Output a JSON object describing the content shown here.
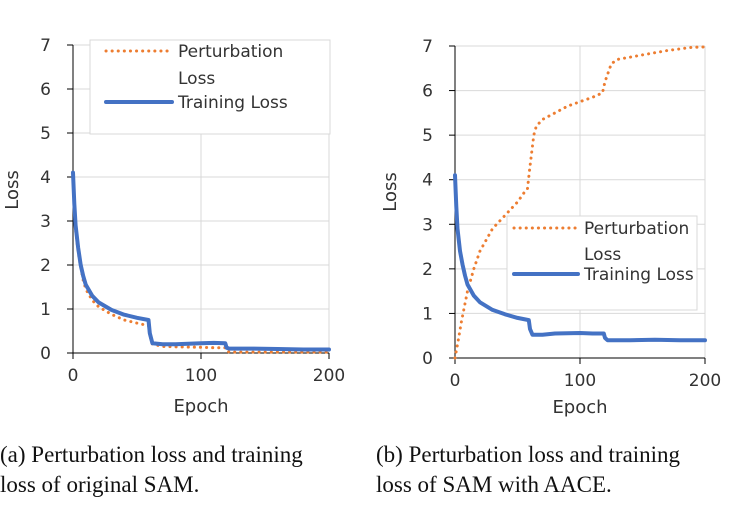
{
  "chart_data": [
    {
      "type": "line",
      "xlabel": "Epoch",
      "ylabel": "Loss",
      "xlim": [
        0,
        200
      ],
      "ylim": [
        0,
        7
      ],
      "xticks": [
        0,
        100,
        200
      ],
      "yticks": [
        0,
        1,
        2,
        3,
        4,
        5,
        6,
        7
      ],
      "grid": "on",
      "legend_position": "top-right",
      "colors": {
        "perturbation": "#ed7d31",
        "training": "#4472c4"
      },
      "legend": {
        "perturbation_lines": [
          "Perturbation",
          "Loss"
        ],
        "training_lines": [
          "Training Loss"
        ]
      },
      "series": [
        {
          "name": "Perturbation Loss",
          "style": "dotted",
          "x": [
            0,
            1,
            2,
            4,
            6,
            8,
            10,
            15,
            20,
            30,
            40,
            50,
            59,
            60,
            62,
            70,
            80,
            100,
            110,
            119,
            120,
            122,
            140,
            160,
            180,
            200
          ],
          "y": [
            4.0,
            3.3,
            2.8,
            2.3,
            1.95,
            1.65,
            1.45,
            1.2,
            1.05,
            0.88,
            0.75,
            0.68,
            0.62,
            0.4,
            0.2,
            0.15,
            0.14,
            0.13,
            0.12,
            0.12,
            0.05,
            0.02,
            0.02,
            0.02,
            0.02,
            0.02
          ]
        },
        {
          "name": "Training Loss",
          "style": "solid",
          "x": [
            0,
            1,
            2,
            4,
            6,
            8,
            10,
            15,
            20,
            30,
            40,
            50,
            59,
            60,
            62,
            70,
            80,
            100,
            110,
            119,
            120,
            122,
            140,
            160,
            180,
            200
          ],
          "y": [
            4.1,
            3.4,
            2.9,
            2.4,
            2.0,
            1.75,
            1.55,
            1.3,
            1.15,
            0.98,
            0.87,
            0.8,
            0.75,
            0.45,
            0.22,
            0.2,
            0.2,
            0.22,
            0.23,
            0.22,
            0.12,
            0.1,
            0.1,
            0.09,
            0.08,
            0.08
          ]
        }
      ]
    },
    {
      "type": "line",
      "xlabel": "Epoch",
      "ylabel": "Loss",
      "xlim": [
        0,
        200
      ],
      "ylim": [
        0,
        7
      ],
      "xticks": [
        0,
        100,
        200
      ],
      "yticks": [
        0,
        1,
        2,
        3,
        4,
        5,
        6,
        7
      ],
      "grid": "on",
      "legend_position": "center-right",
      "colors": {
        "perturbation": "#ed7d31",
        "training": "#4472c4"
      },
      "legend": {
        "perturbation_lines": [
          "Perturbation",
          "Loss"
        ],
        "training_lines": [
          "Training Loss"
        ]
      },
      "series": [
        {
          "name": "Perturbation Loss",
          "style": "dotted",
          "x": [
            0,
            2,
            5,
            10,
            15,
            20,
            30,
            40,
            50,
            55,
            58,
            60,
            63,
            65,
            70,
            80,
            90,
            100,
            110,
            118,
            120,
            125,
            130,
            150,
            170,
            190,
            200
          ],
          "y": [
            0.0,
            0.3,
            0.8,
            1.5,
            2.0,
            2.4,
            2.9,
            3.2,
            3.5,
            3.7,
            3.8,
            4.3,
            5.0,
            5.2,
            5.35,
            5.5,
            5.65,
            5.75,
            5.85,
            5.95,
            6.2,
            6.6,
            6.7,
            6.8,
            6.9,
            6.97,
            6.98
          ]
        },
        {
          "name": "Training Loss",
          "style": "solid",
          "x": [
            0,
            1,
            2,
            4,
            6,
            8,
            10,
            15,
            20,
            30,
            40,
            50,
            59,
            60,
            62,
            70,
            80,
            100,
            110,
            119,
            120,
            122,
            140,
            160,
            180,
            200
          ],
          "y": [
            4.1,
            3.4,
            2.9,
            2.4,
            2.1,
            1.85,
            1.65,
            1.4,
            1.25,
            1.08,
            0.98,
            0.9,
            0.85,
            0.65,
            0.52,
            0.52,
            0.55,
            0.56,
            0.55,
            0.55,
            0.45,
            0.4,
            0.4,
            0.41,
            0.4,
            0.4
          ]
        }
      ]
    }
  ],
  "captions": {
    "a_line1": "(a) Perturbation loss and training",
    "a_line2": "loss of original SAM.",
    "b_line1": "(b) Perturbation loss and training",
    "b_line2": "loss of SAM with AACE."
  }
}
